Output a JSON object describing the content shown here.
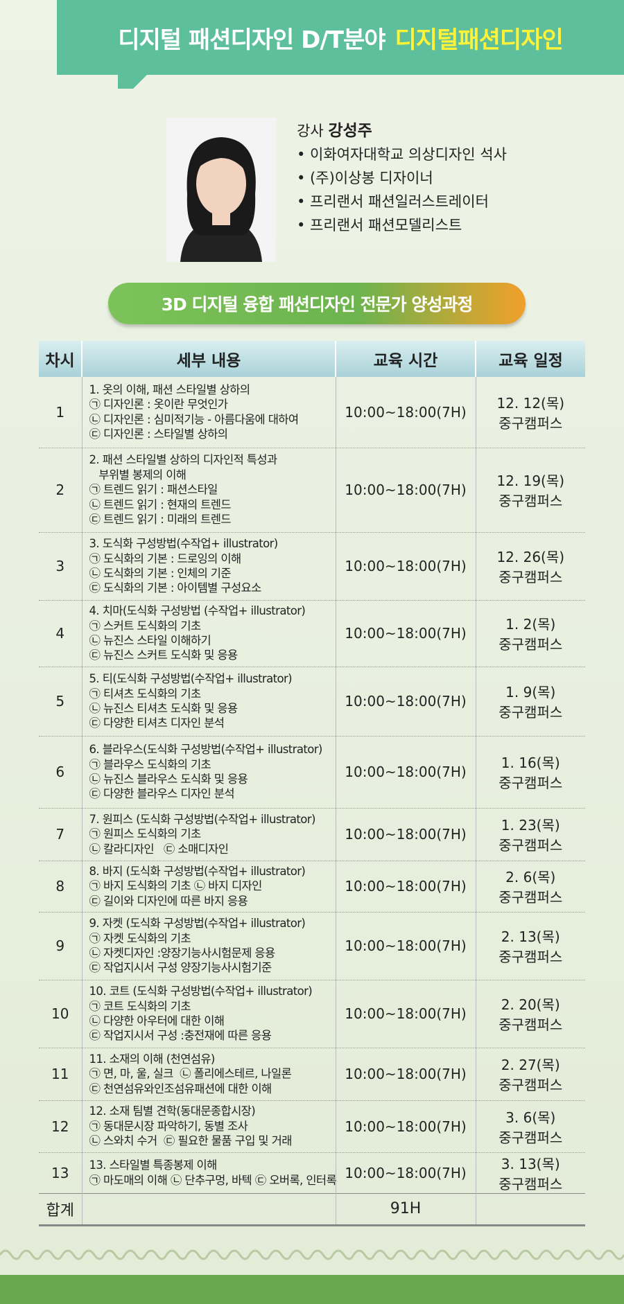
{
  "header": {
    "title": "디지털 패션디자인 D/T분야",
    "highlight": "디지털패션디자인"
  },
  "instructor": {
    "role": "강사",
    "name": "강성주",
    "career": [
      "• 이화여자대학교 의상디자인 석사",
      "• (주)이상봉 디자이너",
      "• 프리랜서 패션일러스트레이터",
      "• 프리랜서 패션모델리스트"
    ]
  },
  "course_title": "3D 디지털 융합 패션디자인 전문가 양성과정",
  "table": {
    "headers": [
      "차시",
      "세부 내용",
      "교육 시간",
      "교육 일정"
    ],
    "rows": [
      {
        "no": "1",
        "content": [
          "1. 옷의 이해, 패션 스타일별 상하의",
          "㉠ 디자인론 : 옷이란 무엇인가",
          "㉡ 디자인론 : 심미적기능 - 아름다움에 대하여",
          "㉢ 디자인론 : 스타일별 상하의"
        ],
        "time": "10:00~18:00(7H)",
        "date": [
          "12. 12(목)",
          "중구캠퍼스"
        ]
      },
      {
        "no": "2",
        "content": [
          "2. 패션 스타일별 상하의 디자인적 특성과",
          "   부위별 봉제의 이해",
          "㉠ 트렌드 읽기 : 패션스타일",
          "㉡ 트렌드 읽기 : 현재의 트렌드",
          "㉢ 트렌드 읽기 : 미래의 트렌드"
        ],
        "time": "10:00~18:00(7H)",
        "date": [
          "12. 19(목)",
          "중구캠퍼스"
        ]
      },
      {
        "no": "3",
        "content": [
          "3. 도식화 구성방법(수작업+ illustrator)",
          "㉠ 도식화의 기본 : 드로잉의 이해",
          "㉡ 도식화의 기본 : 인체의 기준",
          "㉢ 도식화의 기본 : 아이템별 구성요소"
        ],
        "time": "10:00~18:00(7H)",
        "date": [
          "12. 26(목)",
          "중구캠퍼스"
        ]
      },
      {
        "no": "4",
        "content": [
          "4. 치마(도식화 구성방법 (수작업+ illustrator)",
          "㉠ 스커트 도식화의 기초",
          "㉡ 뉴진스 스타일 이해하기",
          "㉢ 뉴진스 스커트 도식화 및 응용"
        ],
        "time": "10:00~18:00(7H)",
        "date": [
          "1. 2(목)",
          "중구캠퍼스"
        ]
      },
      {
        "no": "5",
        "content": [
          "5. 티(도식화 구성방법(수작업+ illustrator)",
          "㉠ 티셔츠 도식화의 기초",
          "㉡ 뉴진스 티셔츠 도식화 및 응용",
          "㉢ 다양한 티셔츠 디자인 분석"
        ],
        "time": "10:00~18:00(7H)",
        "date": [
          "1. 9(목)",
          "중구캠퍼스"
        ]
      },
      {
        "no": "6",
        "content": [
          "6. 블라우스(도식화 구성방법(수작업+ illustrator)",
          "㉠ 블라우스 도식화의 기초",
          "㉡ 뉴진스 블라우스 도식화 및 응용",
          "㉢ 다양한 블라우스 디자인 분석"
        ],
        "time": "10:00~18:00(7H)",
        "date": [
          "1. 16(목)",
          "중구캠퍼스"
        ]
      },
      {
        "no": "7",
        "content": [
          "7. 원피스 (도식화 구성방법(수작업+ illustrator)",
          "㉠ 원피스 도식화의 기초",
          "㉡ 칼라디자인   ㉢ 소매디자인"
        ],
        "time": "10:00~18:00(7H)",
        "date": [
          "1. 23(목)",
          "중구캠퍼스"
        ]
      },
      {
        "no": "8",
        "content": [
          "8. 바지 (도식화 구성방법(수작업+ illustrator)",
          "㉠ 바지 도식화의 기초 ㉡ 바지 디자인",
          "㉢ 길이와 디자인에 따른 바지 응용"
        ],
        "time": "10:00~18:00(7H)",
        "date": [
          "2. 6(목)",
          "중구캠퍼스"
        ]
      },
      {
        "no": "9",
        "content": [
          "9. 자켓 (도식화 구성방법(수작업+ illustrator)",
          "㉠ 자켓 도식화의 기초",
          "㉡ 자켓디자인 :양장기능사시험문제 응용",
          "㉢ 작업지시서 구성 양장기능사시험기준"
        ],
        "time": "10:00~18:00(7H)",
        "date": [
          "2. 13(목)",
          "중구캠퍼스"
        ]
      },
      {
        "no": "10",
        "content": [
          "10. 코트 (도식화 구성방법(수작업+ illustrator)",
          "㉠ 코트 도식화의 기초",
          "㉡ 다양한 아우터에 대한 이해",
          "㉢ 작업지시서 구성 :충전재에 따른 응용"
        ],
        "time": "10:00~18:00(7H)",
        "date": [
          "2. 20(목)",
          "중구캠퍼스"
        ]
      },
      {
        "no": "11",
        "content": [
          "11. 소재의 이해 (천연섬유)",
          "㉠ 면, 마, 울, 실크  ㉡ 폴리에스테르, 나일론",
          "㉢ 천연섬유와인조섬유패션에 대한 이해"
        ],
        "time": "10:00~18:00(7H)",
        "date": [
          "2. 27(목)",
          "중구캠퍼스"
        ]
      },
      {
        "no": "12",
        "content": [
          "12. 소재 팀별 견학(동대문종합시장)",
          "㉠ 동대문시장 파악하기, 동별 조사",
          "㉡ 스와치 수거  ㉢ 필요한 물품 구입 및 거래"
        ],
        "time": "10:00~18:00(7H)",
        "date": [
          "3. 6(목)",
          "중구캠퍼스"
        ]
      },
      {
        "no": "13",
        "content": [
          "13. 스타일별 특종봉제 이해",
          "㉠ 마도매의 이해 ㉡ 단추구멍, 바텍 ㉢ 오버록, 인터록"
        ],
        "time": "10:00~18:00(7H)",
        "date": [
          "3. 13(목)",
          "중구캠퍼스"
        ]
      }
    ],
    "total": {
      "label": "합계",
      "time": "91H"
    }
  }
}
